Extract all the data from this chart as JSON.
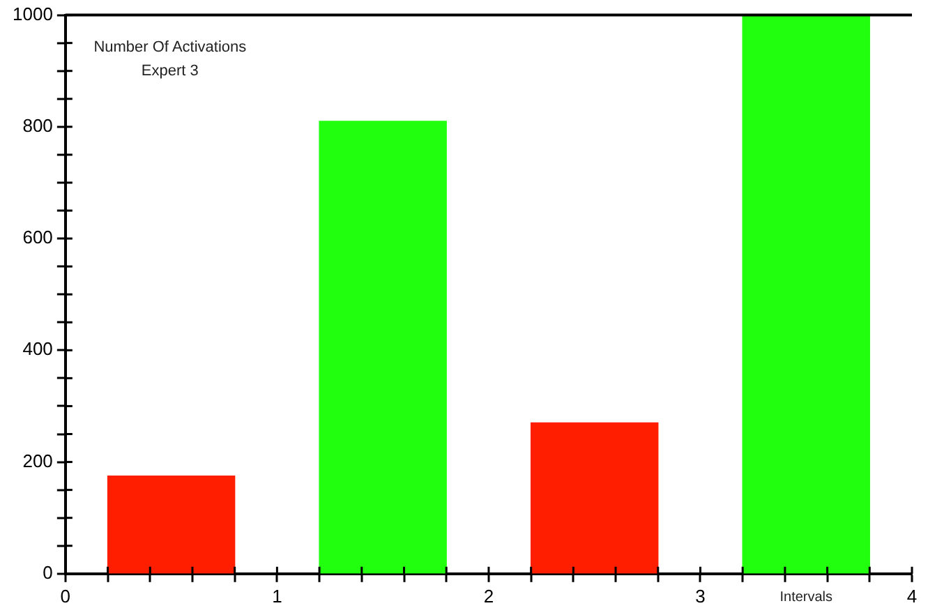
{
  "chart_data": {
    "type": "bar",
    "title": "Number Of Activations\nExpert 3",
    "xlabel": "Intervals",
    "x": [
      0.5,
      1.5,
      2.5,
      3.5
    ],
    "values": [
      175,
      810,
      270,
      1000
    ],
    "colors": [
      "#ff1e00",
      "#22ff0e",
      "#ff1e00",
      "#22ff0e"
    ],
    "xlim": [
      0,
      4
    ],
    "xticks": [
      0,
      {
        "value": 0.2,
        "label": null
      },
      {
        "value": 0.4,
        "label": null
      },
      {
        "value": 0.6,
        "label": null
      },
      {
        "value": 0.8,
        "label": null
      },
      1,
      {
        "value": 1.2,
        "label": null
      },
      {
        "value": 1.4,
        "label": null
      },
      {
        "value": 1.6,
        "label": null
      },
      {
        "value": 1.8,
        "label": null
      },
      2,
      {
        "value": 2.2,
        "label": null
      },
      {
        "value": 2.4,
        "label": null
      },
      {
        "value": 2.6,
        "label": null
      },
      {
        "value": 2.8,
        "label": null
      },
      3,
      {
        "value": 3.2,
        "label": null
      },
      {
        "value": 3.4,
        "label": null
      },
      {
        "value": 3.6,
        "label": null
      },
      {
        "value": 3.8,
        "label": null
      },
      4
    ],
    "ylim": [
      0,
      1000
    ],
    "yticks": [
      0,
      {
        "value": 50,
        "label": null
      },
      {
        "value": 100,
        "label": null
      },
      {
        "value": 150,
        "label": null
      },
      200,
      {
        "value": 250,
        "label": null
      },
      {
        "value": 300,
        "label": null
      },
      {
        "value": 350,
        "label": null
      },
      400,
      {
        "value": 450,
        "label": null
      },
      {
        "value": 500,
        "label": null
      },
      {
        "value": 550,
        "label": null
      },
      600,
      {
        "value": 650,
        "label": null
      },
      {
        "value": 700,
        "label": null
      },
      {
        "value": 750,
        "label": null
      },
      800,
      {
        "value": 850,
        "label": null
      },
      {
        "value": 900,
        "label": null
      },
      {
        "value": 950,
        "label": null
      },
      1000
    ],
    "grid": false,
    "legend": false
  }
}
